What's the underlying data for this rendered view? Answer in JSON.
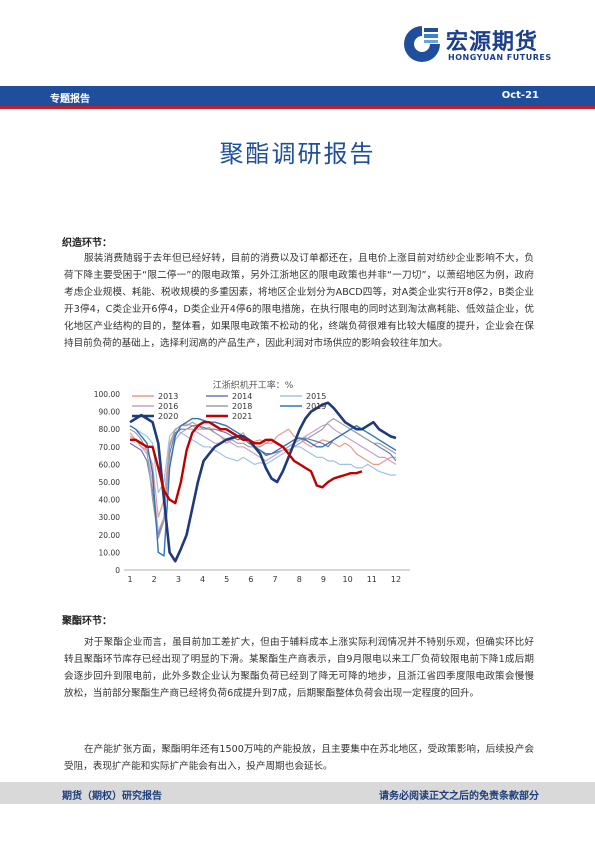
{
  "header": {
    "logo_cn": "宏源期货",
    "logo_en": "HONGYUAN FUTURES",
    "report_type": "专题报告",
    "date": "Oct-21"
  },
  "title": "聚酯调研报告",
  "sections": {
    "weaving": {
      "heading": "织造环节：",
      "text": "服装消费随弱于去年但已经好转，目前的消费以及订单都还在，且电价上涨目前对纺纱企业影响不大，负荷下降主要受困于“限二停一”的限电政策，另外江浙地区的限电政策也并非“一刀切”，以萧绍地区为例，政府考虑企业规模、耗能、税收规模的多重因素，将地区企业划分为ABCD四等，对A类企业实行开8停2，B类企业开3停4，C类企业开6停4，D类企业开4停6的限电措施，在执行限电的同时达到淘汰高耗能、低效益企业，优化地区产业结构的目的，整体看，如果限电政策不松动的化，终端负荷很难有比较大幅度的提升，企业会在保持目前负荷的基础上，选择利润高的产品生产，因此利润对市场供应的影响会较往年加大。"
    },
    "polyester": {
      "heading": "聚酯环节：",
      "text": "对于聚酯企业而言，虽目前加工差扩大，但由于辅料成本上涨实际利润情况并不特别乐观，但确实环比好转且聚酯环节库存已经出现了明显的下滑。某聚酯生产商表示，自9月限电以来工厂负荷较限电前下降1成后期会逐步回升到限电前，此外多数企业认为聚酯负荷已经到了降无可降的地步，且浙江省四季度限电政策会慢慢放松，当前部分聚酯生产商已经将负荷6成提升到7成，后期聚酯整体负荷会出现一定程度的回升。",
      "text2": "在产能扩张方面，聚酯明年还有1500万吨的产能投放，且主要集中在苏北地区，受政策影响，后续投产会受阻，表现扩产能和实际扩产能会有出入，投产周期也会延长。"
    }
  },
  "footer": {
    "left": "期货（期权）研究报告",
    "right": "请务必阅读正文之后的免责条款部分"
  },
  "colors": {
    "brand_blue": "#1f4f9c",
    "accent_red": "#c0202a",
    "footer_gray": "#d9d9d9"
  },
  "chart_data": {
    "type": "line",
    "title": "江浙织机开工率：%",
    "x_ticks": [
      "1",
      "2",
      "3",
      "4",
      "5",
      "6",
      "7",
      "8",
      "9",
      "10",
      "11",
      "12"
    ],
    "ylim": [
      0,
      100
    ],
    "y_ticks": [
      "0",
      "10.00",
      "20.00",
      "30.00",
      "40.00",
      "50.00",
      "60.00",
      "70.00",
      "80.00",
      "90.00",
      "100.00"
    ],
    "legend_position": "top-left",
    "series": [
      {
        "name": "2013",
        "color": "#e89a8a",
        "width": 1.2,
        "values": [
          78,
          74,
          70,
          68,
          60,
          30,
          40,
          72,
          80,
          82,
          83,
          82,
          80,
          80,
          81,
          78,
          76,
          72,
          74,
          76,
          78,
          72,
          73,
          74,
          72,
          72,
          76,
          78,
          80,
          76,
          75,
          72,
          70,
          72,
          74,
          73,
          72,
          70,
          72,
          70,
          66,
          64,
          62,
          60,
          60,
          62,
          64,
          64
        ]
      },
      {
        "name": "2014",
        "color": "#6a79b8",
        "width": 1.2,
        "values": [
          72,
          70,
          68,
          62,
          45,
          20,
          30,
          66,
          78,
          80,
          80,
          82,
          82,
          81,
          80,
          80,
          79,
          78,
          76,
          74,
          75,
          72,
          70,
          68,
          65,
          66,
          67,
          68,
          70,
          72,
          74,
          75,
          74,
          73,
          72,
          70,
          74,
          76,
          78,
          80,
          78,
          76,
          74,
          72,
          70,
          68,
          66,
          62
        ]
      },
      {
        "name": "2015",
        "color": "#9dc3e6",
        "width": 1.2,
        "values": [
          82,
          80,
          78,
          76,
          72,
          44,
          50,
          76,
          80,
          78,
          76,
          74,
          72,
          70,
          70,
          68,
          66,
          64,
          63,
          62,
          64,
          62,
          60,
          61,
          60,
          62,
          64,
          66,
          68,
          70,
          70,
          68,
          66,
          64,
          64,
          62,
          62,
          60,
          60,
          60,
          58,
          58,
          60,
          58,
          56,
          55,
          54,
          54
        ]
      },
      {
        "name": "2016",
        "color": "#c8a0c8",
        "width": 1.2,
        "values": [
          76,
          74,
          70,
          66,
          50,
          22,
          30,
          62,
          74,
          78,
          80,
          80,
          78,
          76,
          74,
          72,
          72,
          74,
          72,
          70,
          70,
          68,
          66,
          64,
          62,
          64,
          66,
          68,
          70,
          72,
          74,
          76,
          78,
          80,
          82,
          83,
          80,
          78,
          76,
          74,
          72,
          70,
          68,
          66,
          64,
          64,
          62,
          60
        ]
      },
      {
        "name": "2018",
        "color": "#a0a0a0",
        "width": 1.2,
        "values": [
          80,
          78,
          74,
          68,
          40,
          18,
          28,
          70,
          80,
          82,
          82,
          84,
          82,
          80,
          80,
          78,
          76,
          74,
          74,
          72,
          72,
          70,
          70,
          70,
          72,
          74,
          72,
          70,
          68,
          70,
          72,
          74,
          76,
          78,
          80,
          84,
          86,
          84,
          82,
          80,
          78,
          76,
          74,
          72,
          72,
          70,
          68,
          66
        ]
      },
      {
        "name": "2019",
        "color": "#2e75b6",
        "width": 1.4,
        "values": [
          82,
          80,
          76,
          72,
          55,
          10,
          8,
          58,
          76,
          82,
          84,
          86,
          86,
          85,
          84,
          84,
          83,
          82,
          80,
          78,
          76,
          74,
          70,
          68,
          66,
          66,
          68,
          70,
          72,
          74,
          75,
          74,
          72,
          70,
          70,
          72,
          74,
          76,
          78,
          80,
          82,
          80,
          78,
          76,
          74,
          72,
          70,
          68
        ]
      },
      {
        "name": "2020",
        "color": "#1f3a7a",
        "width": 2.6,
        "values": [
          84,
          86,
          88,
          86,
          84,
          72,
          40,
          10,
          5,
          12,
          20,
          35,
          50,
          62,
          66,
          70,
          72,
          74,
          75,
          76,
          76,
          74,
          70,
          66,
          58,
          52,
          50,
          56,
          64,
          72,
          80,
          86,
          90,
          92,
          94,
          95,
          92,
          88,
          84,
          82,
          80,
          80,
          82,
          84,
          80,
          78,
          76,
          75
        ]
      },
      {
        "name": "2021",
        "color": "#c00000",
        "width": 2.4,
        "values": [
          74,
          74,
          72,
          70,
          70,
          58,
          45,
          40,
          38,
          50,
          68,
          78,
          82,
          84,
          84,
          82,
          80,
          80,
          78,
          76,
          74,
          74,
          72,
          72,
          74,
          74,
          72,
          70,
          66,
          62,
          60,
          58,
          56,
          48,
          47,
          50,
          52,
          53,
          54,
          55,
          55,
          56,
          null,
          null,
          null,
          null,
          null,
          null
        ]
      }
    ]
  }
}
